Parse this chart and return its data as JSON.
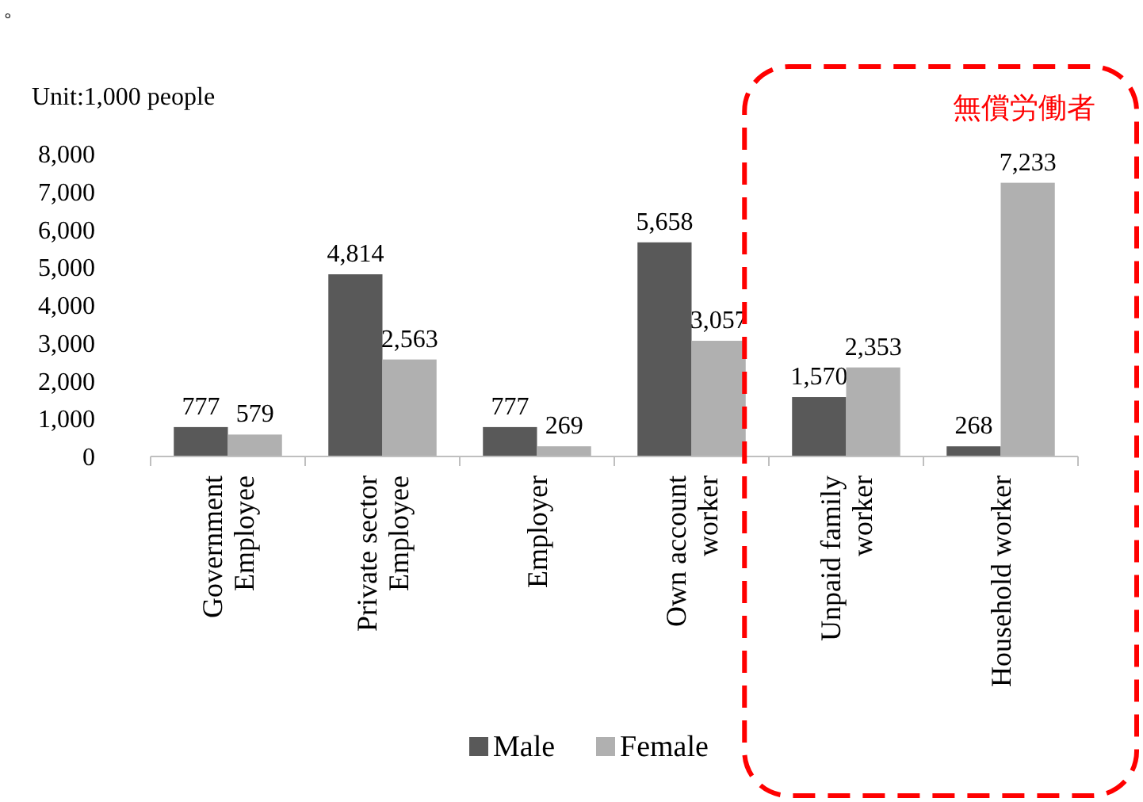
{
  "chart_data": {
    "type": "bar",
    "subtitle": "Unit:1,000 people",
    "categories": [
      "Government Employee",
      "Private sector Employee",
      "Employer",
      "Own account worker",
      "Unpaid family worker",
      "Household worker"
    ],
    "series": [
      {
        "name": "Male",
        "color": "#595959",
        "values": [
          777,
          4814,
          777,
          5658,
          1570,
          268
        ]
      },
      {
        "name": "Female",
        "color": "#b0b0b0",
        "values": [
          579,
          2563,
          269,
          3057,
          2353,
          7233
        ]
      }
    ],
    "ylim": [
      0,
      8000
    ],
    "yticks": [
      {
        "value": 0,
        "label": "0"
      },
      {
        "value": 1000,
        "label": "1,000"
      },
      {
        "value": 2000,
        "label": "2,000"
      },
      {
        "value": 3000,
        "label": "3,000"
      },
      {
        "value": 4000,
        "label": "4,000"
      },
      {
        "value": 5000,
        "label": "5,000"
      },
      {
        "value": 6000,
        "label": "6,000"
      },
      {
        "value": 7000,
        "label": "7,000"
      },
      {
        "value": 8000,
        "label": "8,000"
      }
    ],
    "value_labels": [
      [
        "777",
        "4,814",
        "777",
        "5,658",
        "1,570",
        "268"
      ],
      [
        "579",
        "2,563",
        "269",
        "3,057",
        "2,353",
        "7,233"
      ]
    ],
    "annotations": [
      "。",
      "無償労働者"
    ],
    "legend": "bottom",
    "grid": false
  }
}
